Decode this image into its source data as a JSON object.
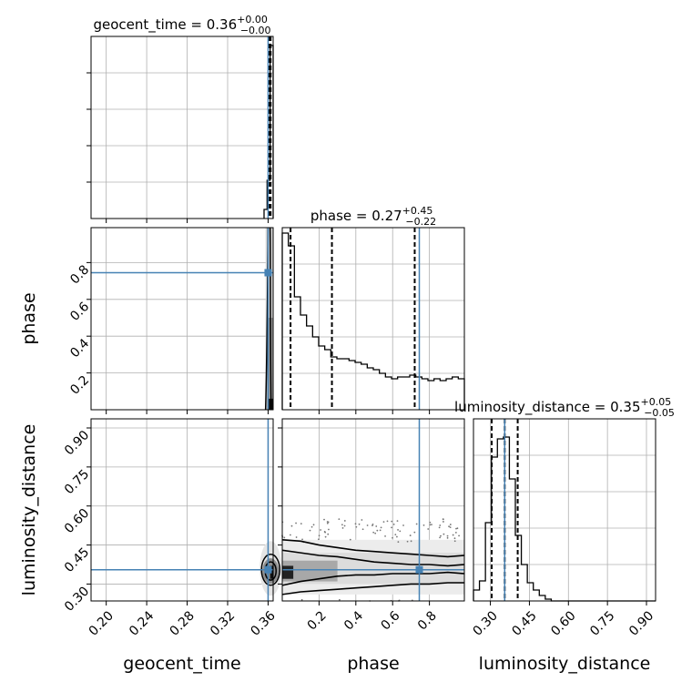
{
  "chart_data": {
    "type": "corner",
    "parameters": [
      "geocent_time",
      "phase",
      "luminosity_distance"
    ],
    "truth_color": "#4682b4",
    "truths": {
      "geocent_time": 0.36,
      "phase": 0.745,
      "luminosity_distance": 0.355
    },
    "diagonal": [
      {
        "param": "geocent_time",
        "title_prefix": "geocent_time = 0.36",
        "title_sup": "+0.00",
        "title_sub": "−0.00",
        "xlim": [
          0.185,
          0.365
        ],
        "median": 0.3615,
        "quantiles": [
          0.3605,
          0.3625
        ],
        "hist_x": [
          0.356,
          0.359,
          0.362,
          0.365
        ],
        "hist_y": [
          0.05,
          0.21,
          0.95
        ]
      },
      {
        "param": "phase",
        "title_prefix": "phase = 0.27",
        "title_sup": "+0.45",
        "title_sub": "−0.22",
        "xlim": [
          0.0,
          0.99
        ],
        "median": 0.27,
        "quantiles": [
          0.045,
          0.72
        ],
        "hist_x": [
          0.0,
          0.033,
          0.066,
          0.099,
          0.132,
          0.165,
          0.198,
          0.231,
          0.264,
          0.297,
          0.33,
          0.363,
          0.396,
          0.429,
          0.462,
          0.495,
          0.528,
          0.561,
          0.594,
          0.627,
          0.66,
          0.693,
          0.726,
          0.759,
          0.792,
          0.825,
          0.858,
          0.891,
          0.924,
          0.957,
          0.99
        ],
        "hist_y": [
          0.97,
          0.9,
          0.62,
          0.52,
          0.46,
          0.4,
          0.35,
          0.33,
          0.29,
          0.28,
          0.28,
          0.27,
          0.26,
          0.25,
          0.23,
          0.22,
          0.2,
          0.18,
          0.17,
          0.18,
          0.18,
          0.19,
          0.18,
          0.17,
          0.16,
          0.17,
          0.16,
          0.17,
          0.18,
          0.17
        ]
      },
      {
        "param": "luminosity_distance",
        "title_prefix": "luminosity_distance = 0.35",
        "title_sup": "+0.05",
        "title_sub": "−0.05",
        "xlim": [
          0.235,
          0.935
        ],
        "median": 0.355,
        "quantiles": [
          0.305,
          0.405
        ],
        "hist_x": [
          0.235,
          0.258,
          0.281,
          0.304,
          0.327,
          0.35,
          0.373,
          0.396,
          0.419,
          0.442,
          0.465,
          0.488,
          0.511,
          0.534,
          0.557,
          0.935
        ],
        "hist_y": [
          0.06,
          0.11,
          0.43,
          0.79,
          0.89,
          0.9,
          0.67,
          0.36,
          0.2,
          0.1,
          0.06,
          0.03,
          0.01,
          0.0,
          0.0
        ]
      }
    ],
    "panels": [
      {
        "id": "geocent_time_hist",
        "xlim": [
          0.185,
          0.365
        ],
        "xticks": [
          0.2,
          0.24,
          0.28,
          0.32,
          0.36
        ],
        "ytick_count": 5
      },
      {
        "id": "phase_vs_geocent_time",
        "x": "geocent_time",
        "y": "phase",
        "xlim": [
          0.185,
          0.365
        ],
        "ylim": [
          0.0,
          0.99
        ],
        "xticks": [
          0.2,
          0.24,
          0.28,
          0.32,
          0.36
        ],
        "yticks": [
          0.2,
          0.4,
          0.6,
          0.8
        ],
        "ytick_labels": [
          "0.2",
          "0.4",
          "0.6",
          "0.8"
        ]
      },
      {
        "id": "phase_hist",
        "xlim": [
          0.0,
          0.99
        ],
        "xticks": [
          0.2,
          0.4,
          0.6,
          0.8
        ]
      },
      {
        "id": "luminosity_distance_vs_geocent_time",
        "x": "geocent_time",
        "y": "luminosity_distance",
        "xlim": [
          0.185,
          0.365
        ],
        "ylim": [
          0.235,
          0.935
        ],
        "xticks": [
          0.2,
          0.24,
          0.28,
          0.32,
          0.36
        ],
        "xtick_labels": [
          "0.20",
          "0.24",
          "0.28",
          "0.32",
          "0.36"
        ],
        "yticks": [
          0.3,
          0.45,
          0.6,
          0.75,
          0.9
        ],
        "ytick_labels": [
          "0.30",
          "0.45",
          "0.60",
          "0.75",
          "0.90"
        ]
      },
      {
        "id": "luminosity_distance_vs_phase",
        "x": "phase",
        "y": "luminosity_distance",
        "xlim": [
          0.0,
          0.99
        ],
        "ylim": [
          0.235,
          0.935
        ],
        "xticks": [
          0.2,
          0.4,
          0.6,
          0.8
        ],
        "xtick_labels": [
          "0.2",
          "0.4",
          "0.6",
          "0.8"
        ],
        "yticks": [
          0.3,
          0.45,
          0.6,
          0.75,
          0.9
        ]
      },
      {
        "id": "luminosity_distance_hist",
        "xlim": [
          0.235,
          0.935
        ],
        "xticks": [
          0.3,
          0.45,
          0.6,
          0.75,
          0.9
        ],
        "xtick_labels": [
          "0.30",
          "0.45",
          "0.60",
          "0.75",
          "0.90"
        ]
      }
    ],
    "axis_labels": {
      "x_geocent_time": "geocent_time",
      "x_phase": "phase",
      "x_luminosity_distance": "luminosity_distance",
      "y_phase": "phase",
      "y_luminosity_distance": "luminosity_distance"
    },
    "contours_phase_vs_luminosity_distance": [
      [
        [
          0.0,
          0.47
        ],
        [
          0.1,
          0.465
        ],
        [
          0.2,
          0.45
        ],
        [
          0.3,
          0.44
        ],
        [
          0.4,
          0.43
        ],
        [
          0.5,
          0.425
        ],
        [
          0.6,
          0.42
        ],
        [
          0.7,
          0.415
        ],
        [
          0.8,
          0.41
        ],
        [
          0.9,
          0.405
        ],
        [
          0.99,
          0.41
        ]
      ],
      [
        [
          0.0,
          0.43
        ],
        [
          0.1,
          0.42
        ],
        [
          0.2,
          0.41
        ],
        [
          0.3,
          0.405
        ],
        [
          0.4,
          0.395
        ],
        [
          0.5,
          0.385
        ],
        [
          0.6,
          0.38
        ],
        [
          0.7,
          0.375
        ],
        [
          0.8,
          0.375
        ],
        [
          0.9,
          0.37
        ],
        [
          0.99,
          0.375
        ]
      ],
      [
        [
          0.0,
          0.295
        ],
        [
          0.1,
          0.31
        ],
        [
          0.2,
          0.32
        ],
        [
          0.3,
          0.33
        ],
        [
          0.4,
          0.335
        ],
        [
          0.5,
          0.335
        ],
        [
          0.6,
          0.34
        ],
        [
          0.7,
          0.34
        ],
        [
          0.8,
          0.34
        ],
        [
          0.9,
          0.345
        ],
        [
          0.99,
          0.34
        ]
      ],
      [
        [
          0.0,
          0.26
        ],
        [
          0.1,
          0.27
        ],
        [
          0.2,
          0.275
        ],
        [
          0.3,
          0.28
        ],
        [
          0.4,
          0.285
        ],
        [
          0.5,
          0.29
        ],
        [
          0.6,
          0.295
        ],
        [
          0.7,
          0.3
        ],
        [
          0.8,
          0.3
        ],
        [
          0.9,
          0.305
        ],
        [
          0.99,
          0.305
        ]
      ]
    ]
  }
}
